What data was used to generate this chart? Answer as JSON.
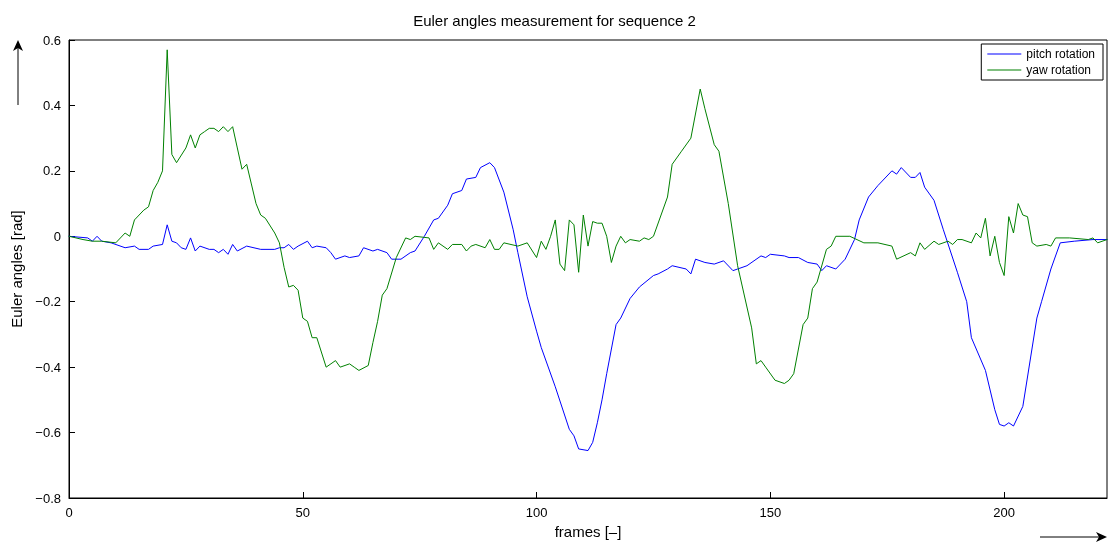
{
  "chart_data": {
    "type": "line",
    "title": "Euler angles measurement for sequence 2",
    "xlabel": "frames [–]",
    "ylabel": "Euler angles [rad]",
    "xlim": [
      0,
      222
    ],
    "xticks": [
      0,
      50,
      100,
      150,
      200
    ],
    "ylim": [
      -0.8,
      0.6
    ],
    "yticks": [
      {
        "value": -0.8,
        "label": "−0.8"
      },
      {
        "value": -0.6,
        "label": "−0.6"
      },
      {
        "value": -0.4,
        "label": "−0.4"
      },
      {
        "value": -0.2,
        "label": "−0.2"
      },
      0,
      0.2,
      0.4,
      0.6
    ],
    "grid": false,
    "legend": "top right",
    "marker": "none",
    "line_style": "solid",
    "series": [
      {
        "name": "pitch rotation",
        "color": "#0000ff",
        "x": [
          0,
          4,
          5,
          6,
          7,
          9,
          12,
          14,
          15,
          17,
          18,
          20,
          21,
          22,
          23,
          24,
          25,
          26,
          27,
          28,
          30,
          31,
          32,
          33,
          34,
          35,
          36,
          38,
          41,
          44,
          45,
          46,
          47,
          48,
          49,
          51,
          52,
          53,
          55,
          56,
          57,
          59,
          60,
          62,
          63,
          65,
          66,
          68,
          69,
          71,
          73,
          74,
          76,
          78,
          79,
          81,
          82,
          84,
          85,
          87,
          88,
          90,
          91,
          93,
          95,
          96,
          98,
          100,
          101,
          104,
          107,
          108,
          109,
          111,
          112,
          113,
          114,
          115,
          117,
          118,
          120,
          122,
          125,
          126,
          128,
          129,
          132,
          133,
          134,
          136,
          138,
          140,
          142,
          143,
          145,
          148,
          149,
          150,
          153,
          154,
          156,
          158,
          160,
          161,
          162,
          164,
          166,
          168,
          169,
          171,
          173,
          176,
          177,
          178,
          180,
          181,
          182,
          183,
          185,
          187,
          190,
          192,
          193,
          196,
          198,
          199,
          200,
          201,
          202,
          204,
          207,
          208,
          210,
          212,
          215,
          219,
          222
        ],
        "values": [
          0,
          -0.005,
          -0.015,
          0,
          -0.015,
          -0.02,
          -0.035,
          -0.03,
          -0.04,
          -0.04,
          -0.03,
          -0.025,
          0.035,
          -0.015,
          -0.02,
          -0.035,
          -0.04,
          -0.005,
          -0.045,
          -0.03,
          -0.04,
          -0.04,
          -0.05,
          -0.04,
          -0.055,
          -0.025,
          -0.045,
          -0.03,
          -0.04,
          -0.04,
          -0.035,
          -0.035,
          -0.025,
          -0.04,
          -0.03,
          -0.015,
          -0.035,
          -0.03,
          -0.035,
          -0.05,
          -0.07,
          -0.06,
          -0.065,
          -0.06,
          -0.035,
          -0.045,
          -0.04,
          -0.05,
          -0.07,
          -0.07,
          -0.05,
          -0.045,
          0,
          0.05,
          0.055,
          0.095,
          0.13,
          0.14,
          0.175,
          0.18,
          0.21,
          0.225,
          0.21,
          0.135,
          0.02,
          -0.05,
          -0.185,
          -0.29,
          -0.34,
          -0.46,
          -0.59,
          -0.61,
          -0.65,
          -0.655,
          -0.63,
          -0.57,
          -0.5,
          -0.42,
          -0.27,
          -0.25,
          -0.19,
          -0.155,
          -0.12,
          -0.115,
          -0.1,
          -0.09,
          -0.1,
          -0.115,
          -0.07,
          -0.08,
          -0.085,
          -0.075,
          -0.105,
          -0.1,
          -0.09,
          -0.06,
          -0.065,
          -0.055,
          -0.06,
          -0.065,
          -0.065,
          -0.08,
          -0.085,
          -0.105,
          -0.09,
          -0.1,
          -0.07,
          -0.01,
          0.05,
          0.12,
          0.155,
          0.2,
          0.19,
          0.21,
          0.18,
          0.18,
          0.195,
          0.15,
          0.11,
          0.02,
          -0.11,
          -0.2,
          -0.31,
          -0.41,
          -0.53,
          -0.575,
          -0.58,
          -0.57,
          -0.58,
          -0.52,
          -0.25,
          -0.2,
          -0.1,
          -0.02,
          -0.015,
          -0.01,
          -0.01
        ]
      },
      {
        "name": "yaw rotation",
        "color": "#008000",
        "x": [
          0,
          3,
          5,
          7,
          10,
          12,
          13,
          14,
          16,
          17,
          18,
          19,
          20,
          21,
          22,
          23,
          25,
          26,
          27,
          28,
          29,
          30,
          31,
          32,
          33,
          34,
          35,
          36,
          37,
          38,
          39,
          40,
          41,
          42,
          44,
          45,
          46,
          47,
          48,
          49,
          50,
          51,
          52,
          53,
          55,
          57,
          58,
          60,
          61,
          62,
          64,
          65,
          66,
          67,
          68,
          70,
          72,
          73,
          74,
          77,
          78,
          79,
          81,
          82,
          84,
          85,
          86,
          87,
          89,
          90,
          91,
          92,
          93,
          96,
          98,
          100,
          101,
          102,
          103,
          104,
          105,
          106,
          107,
          108,
          109,
          110,
          111,
          112,
          113,
          114,
          115,
          116,
          117,
          118,
          119,
          120,
          122,
          123,
          124,
          125,
          128,
          129,
          131,
          133,
          135,
          136,
          138,
          139,
          141,
          143,
          146,
          147,
          148,
          149,
          151,
          153,
          154,
          155,
          157,
          158,
          159,
          160,
          162,
          163,
          164,
          167,
          170,
          173,
          176,
          177,
          180,
          181,
          182,
          183,
          185,
          186,
          188,
          189,
          190,
          191,
          193,
          194,
          195,
          196,
          197,
          198,
          199,
          200,
          201,
          202,
          203,
          204,
          205,
          206,
          207,
          209,
          210,
          211,
          214,
          218,
          219,
          220,
          222
        ],
        "values": [
          0,
          -0.01,
          -0.015,
          -0.015,
          -0.02,
          0.01,
          0,
          0.05,
          0.08,
          0.09,
          0.14,
          0.165,
          0.2,
          0.57,
          0.25,
          0.225,
          0.27,
          0.31,
          0.27,
          0.31,
          0.32,
          0.33,
          0.33,
          0.32,
          0.335,
          0.32,
          0.335,
          0.27,
          0.205,
          0.22,
          0.16,
          0.1,
          0.065,
          0.055,
          0.01,
          -0.02,
          -0.095,
          -0.155,
          -0.15,
          -0.165,
          -0.25,
          -0.26,
          -0.31,
          -0.31,
          -0.4,
          -0.38,
          -0.4,
          -0.39,
          -0.4,
          -0.41,
          -0.395,
          -0.325,
          -0.26,
          -0.18,
          -0.16,
          -0.065,
          -0.005,
          -0.01,
          0,
          -0.005,
          -0.04,
          -0.02,
          -0.04,
          -0.025,
          -0.025,
          -0.045,
          -0.03,
          -0.025,
          -0.035,
          -0.01,
          -0.04,
          -0.04,
          -0.02,
          -0.03,
          -0.02,
          -0.065,
          -0.015,
          -0.04,
          0,
          0.05,
          -0.085,
          -0.105,
          0.05,
          0.035,
          -0.11,
          0.065,
          -0.03,
          0.045,
          0.04,
          0.04,
          0,
          -0.08,
          -0.03,
          0,
          -0.02,
          -0.01,
          -0.015,
          -0.005,
          -0.01,
          0,
          0.12,
          0.22,
          0.26,
          0.3,
          0.45,
          0.39,
          0.28,
          0.26,
          0.1,
          -0.09,
          -0.28,
          -0.39,
          -0.38,
          -0.4,
          -0.44,
          -0.45,
          -0.44,
          -0.42,
          -0.27,
          -0.25,
          -0.16,
          -0.14,
          -0.04,
          -0.03,
          0,
          0,
          -0.02,
          -0.02,
          -0.03,
          -0.07,
          -0.05,
          -0.06,
          -0.02,
          -0.04,
          -0.015,
          -0.025,
          -0.015,
          -0.025,
          -0.01,
          -0.01,
          -0.02,
          0.01,
          -0.005,
          0.055,
          -0.06,
          0,
          -0.08,
          -0.12,
          0.06,
          0.01,
          0.1,
          0.065,
          0.06,
          -0.02,
          -0.03,
          -0.025,
          -0.03,
          -0.005,
          -0.005,
          -0.01,
          -0.005,
          -0.02,
          -0.01
        ]
      }
    ]
  }
}
